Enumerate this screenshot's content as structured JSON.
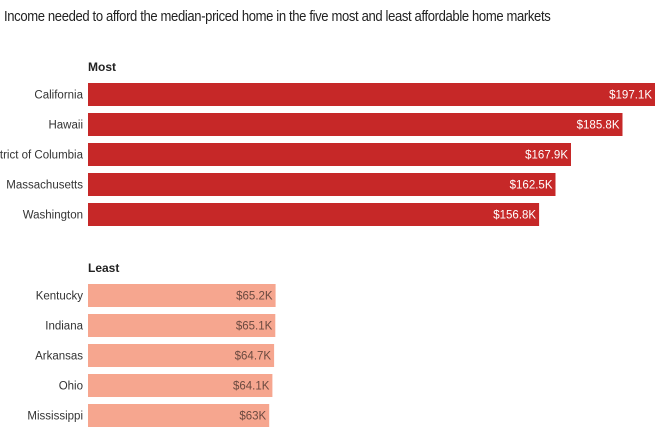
{
  "chart_data": {
    "type": "bar",
    "orientation": "horizontal",
    "title": "Income needed to afford the median-priced home in the five most and least affordable home markets",
    "unit": "K",
    "groups": [
      {
        "label": "Most",
        "color": "#c62828",
        "value_label_color": "#ffffff",
        "categories": [
          "California",
          "Hawaii",
          "District of Columbia",
          "Massachusetts",
          "Washington"
        ],
        "values": [
          197.1,
          185.8,
          167.9,
          162.5,
          156.8
        ],
        "value_labels": [
          "$197.1K",
          "$185.8K",
          "$167.9K",
          "$162.5K",
          "$156.8K"
        ]
      },
      {
        "label": "Least",
        "color": "#f6a68f",
        "value_label_color": "#6b4a40",
        "categories": [
          "Kentucky",
          "Indiana",
          "Arkansas",
          "Ohio",
          "Mississippi"
        ],
        "values": [
          65.2,
          65.1,
          64.7,
          64.1,
          63
        ],
        "value_labels": [
          "$65.2K",
          "$65.1K",
          "$64.7K",
          "$64.1K",
          "$63K"
        ]
      }
    ],
    "xlim": [
      0,
      197.1
    ],
    "grid": false,
    "legend": "none"
  }
}
